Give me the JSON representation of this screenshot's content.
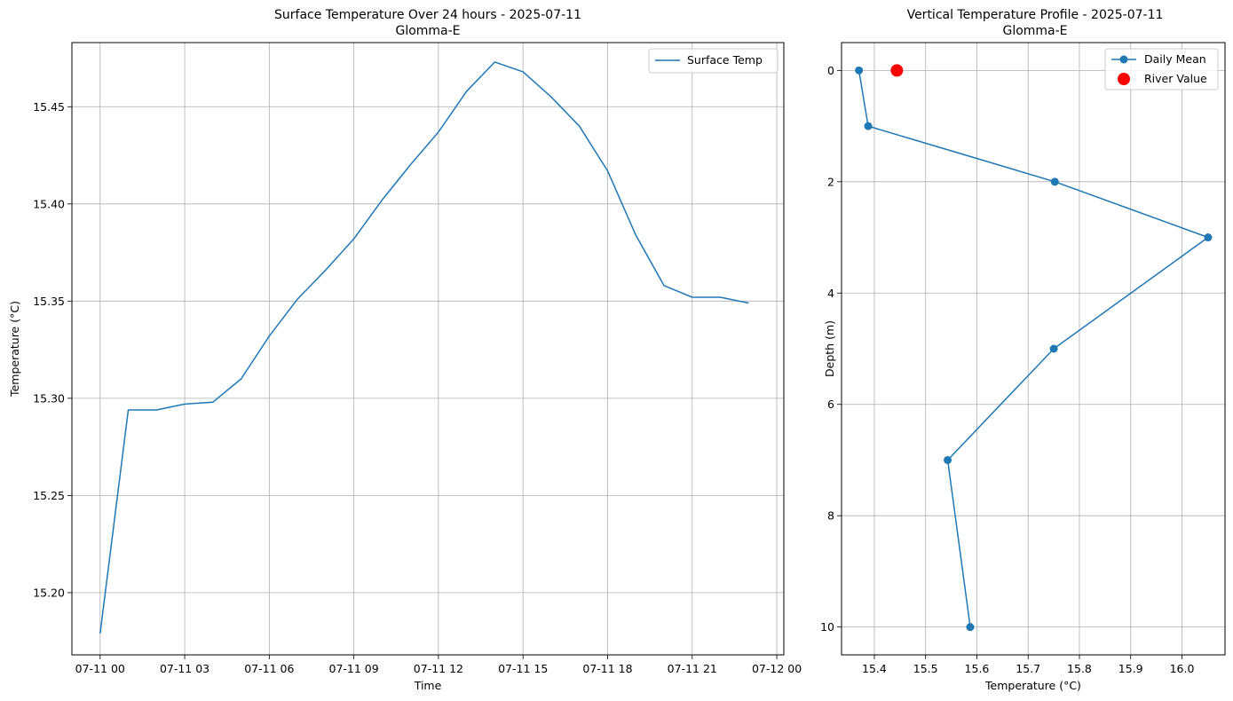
{
  "chart_data": [
    {
      "type": "line",
      "title": "Surface Temperature Over 24 hours - 2025-07-11",
      "subtitle": "Glomma-E",
      "xlabel": "Time",
      "ylabel": "Temperature (°C)",
      "grid": true,
      "legend_position": "top-right",
      "xlim": [
        "2025-07-10 23:00",
        "2025-07-12 00:15"
      ],
      "ylim": [
        15.168,
        15.483
      ],
      "x_ticks": [
        {
          "value": "2025-07-11 00:00",
          "label": "07-11 00"
        },
        {
          "value": "2025-07-11 03:00",
          "label": "07-11 03"
        },
        {
          "value": "2025-07-11 06:00",
          "label": "07-11 06"
        },
        {
          "value": "2025-07-11 09:00",
          "label": "07-11 09"
        },
        {
          "value": "2025-07-11 12:00",
          "label": "07-11 12"
        },
        {
          "value": "2025-07-11 15:00",
          "label": "07-11 15"
        },
        {
          "value": "2025-07-11 18:00",
          "label": "07-11 18"
        },
        {
          "value": "2025-07-11 21:00",
          "label": "07-11 21"
        },
        {
          "value": "2025-07-12 00:00",
          "label": "07-12 00"
        }
      ],
      "y_ticks": [
        {
          "value": 15.2,
          "label": "15.20"
        },
        {
          "value": 15.25,
          "label": "15.25"
        },
        {
          "value": 15.3,
          "label": "15.30"
        },
        {
          "value": 15.35,
          "label": "15.35"
        },
        {
          "value": 15.4,
          "label": "15.40"
        },
        {
          "value": 15.45,
          "label": "15.45"
        }
      ],
      "series": [
        {
          "name": "Surface Temp",
          "color": "#1f77b4",
          "x": [
            "2025-07-11 00:00",
            "2025-07-11 01:00",
            "2025-07-11 02:00",
            "2025-07-11 03:00",
            "2025-07-11 04:00",
            "2025-07-11 05:00",
            "2025-07-11 06:00",
            "2025-07-11 07:00",
            "2025-07-11 08:00",
            "2025-07-11 09:00",
            "2025-07-11 10:00",
            "2025-07-11 11:00",
            "2025-07-11 12:00",
            "2025-07-11 13:00",
            "2025-07-11 14:00",
            "2025-07-11 15:00",
            "2025-07-11 16:00",
            "2025-07-11 17:00",
            "2025-07-11 18:00",
            "2025-07-11 19:00",
            "2025-07-11 20:00",
            "2025-07-11 21:00",
            "2025-07-11 22:00",
            "2025-07-11 23:00"
          ],
          "y": [
            15.179,
            15.294,
            15.294,
            15.297,
            15.298,
            15.31,
            15.332,
            15.351,
            15.366,
            15.382,
            15.402,
            15.42,
            15.437,
            15.458,
            15.473,
            15.468,
            15.455,
            15.44,
            15.417,
            15.384,
            15.358,
            15.352,
            15.352,
            15.349
          ]
        }
      ]
    },
    {
      "type": "line",
      "title": "Vertical Temperature Profile - 2025-07-11",
      "subtitle": "Glomma-E",
      "xlabel": "Temperature (°C)",
      "ylabel": "Depth (m)",
      "grid": true,
      "legend_position": "top-right",
      "y_inverted": true,
      "xlim": [
        15.336,
        16.084
      ],
      "ylim": [
        10.5,
        -0.5
      ],
      "x_ticks": [
        {
          "value": 15.4,
          "label": "15.4"
        },
        {
          "value": 15.5,
          "label": "15.5"
        },
        {
          "value": 15.6,
          "label": "15.6"
        },
        {
          "value": 15.7,
          "label": "15.7"
        },
        {
          "value": 15.8,
          "label": "15.8"
        },
        {
          "value": 15.9,
          "label": "15.9"
        },
        {
          "value": 16.0,
          "label": "16.0"
        }
      ],
      "y_ticks": [
        {
          "value": 0,
          "label": "0"
        },
        {
          "value": 2,
          "label": "2"
        },
        {
          "value": 4,
          "label": "4"
        },
        {
          "value": 6,
          "label": "6"
        },
        {
          "value": 8,
          "label": "8"
        },
        {
          "value": 10,
          "label": "10"
        }
      ],
      "series": [
        {
          "name": "Daily Mean",
          "color": "#1f77b4",
          "x": [
            15.37,
            15.388,
            15.752,
            16.051,
            15.75,
            15.543,
            15.587
          ],
          "y": [
            0,
            1,
            2,
            3,
            5,
            7,
            10
          ]
        },
        {
          "name": "River Value",
          "color": "#ff0000",
          "type": "scatter",
          "x": [
            15.444
          ],
          "y": [
            0
          ]
        }
      ]
    }
  ]
}
